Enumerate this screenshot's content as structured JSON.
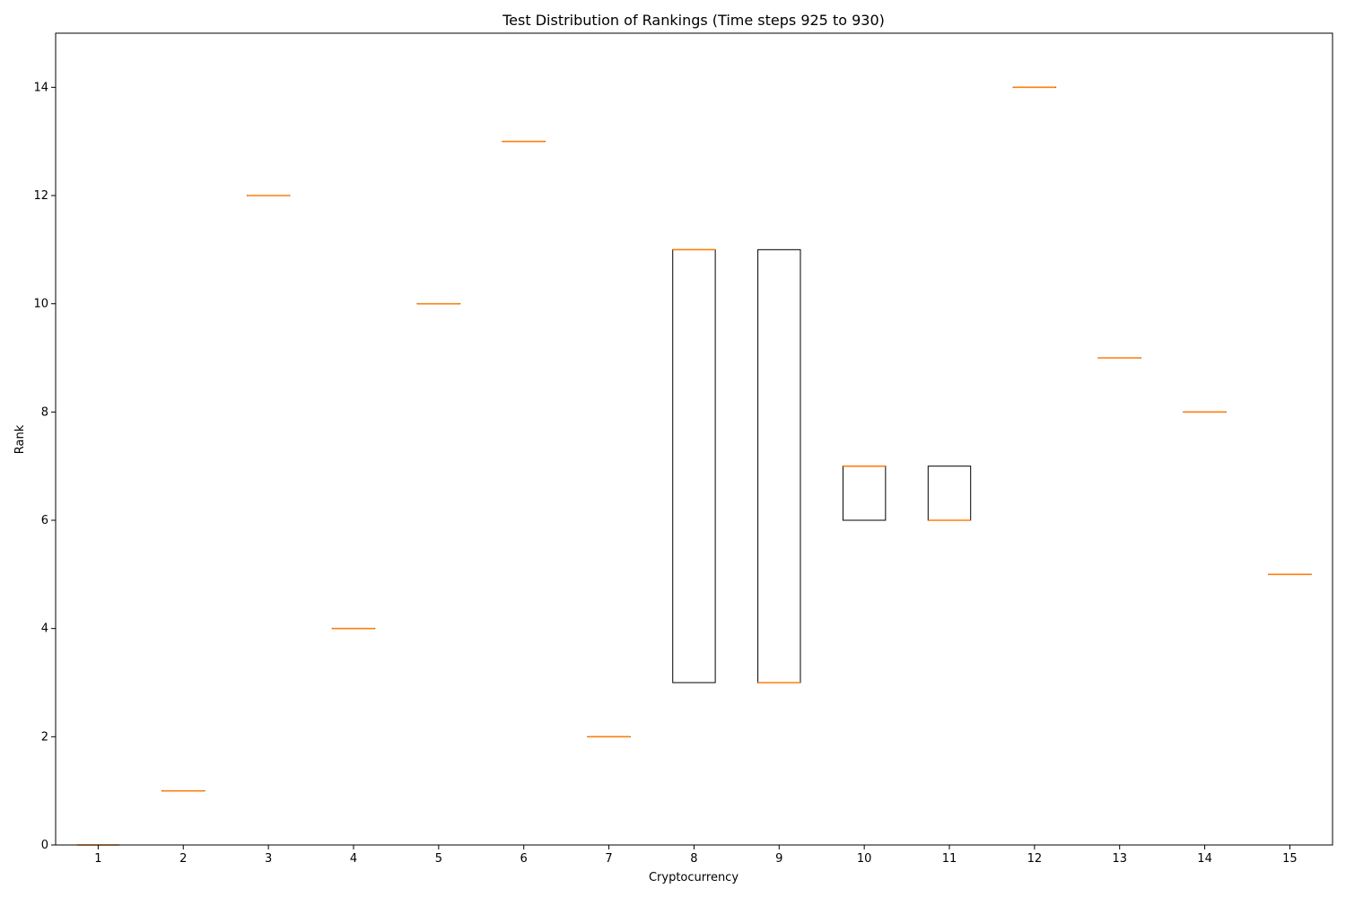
{
  "chart_data": {
    "type": "box",
    "title": "Test Distribution of Rankings (Time steps 925 to 930)",
    "xlabel": "Cryptocurrency",
    "ylabel": "Rank",
    "ylim": [
      0,
      15
    ],
    "yticks": [
      0,
      2,
      4,
      6,
      8,
      10,
      12,
      14
    ],
    "categories": [
      "1",
      "2",
      "3",
      "4",
      "5",
      "6",
      "7",
      "8",
      "9",
      "10",
      "11",
      "12",
      "13",
      "14",
      "15"
    ],
    "boxes": [
      {
        "q1": 0,
        "median": 0,
        "q3": 0
      },
      {
        "q1": 1,
        "median": 1,
        "q3": 1
      },
      {
        "q1": 12,
        "median": 12,
        "q3": 12
      },
      {
        "q1": 4,
        "median": 4,
        "q3": 4
      },
      {
        "q1": 10,
        "median": 10,
        "q3": 10
      },
      {
        "q1": 13,
        "median": 13,
        "q3": 13
      },
      {
        "q1": 2,
        "median": 2,
        "q3": 2
      },
      {
        "q1": 3,
        "median": 11,
        "q3": 11
      },
      {
        "q1": 3,
        "median": 3,
        "q3": 11
      },
      {
        "q1": 6,
        "median": 7,
        "q3": 7
      },
      {
        "q1": 6,
        "median": 6,
        "q3": 7
      },
      {
        "q1": 14,
        "median": 14,
        "q3": 14
      },
      {
        "q1": 9,
        "median": 9,
        "q3": 9
      },
      {
        "q1": 8,
        "median": 8,
        "q3": 8
      },
      {
        "q1": 5,
        "median": 5,
        "q3": 5
      }
    ],
    "grid": false,
    "colors": {
      "box": "#000000",
      "median": "#ff7f0e"
    }
  }
}
